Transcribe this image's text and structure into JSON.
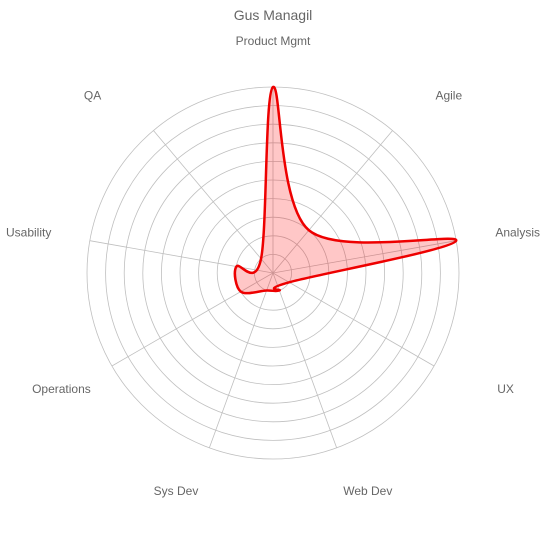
{
  "chart_data": {
    "type": "radar",
    "title": "Gus Managil",
    "categories": [
      "Product Mgmt",
      "Agile",
      "Analysis",
      "UX",
      "Web Dev",
      "Sys Dev",
      "Operations",
      "Usability",
      "QA"
    ],
    "series": [
      {
        "name": "",
        "values": [
          10,
          3,
          10,
          1,
          1,
          1,
          2,
          2,
          1
        ],
        "color": "#ee0000",
        "fill": "rgba(255,0,0,0.22)"
      }
    ],
    "r_range": [
      0,
      10
    ],
    "ring_count": 10,
    "grid": true,
    "legend": "none",
    "accent_color": "#ee0000",
    "grid_color": "#bfbfbf",
    "label_color": "#666666"
  }
}
